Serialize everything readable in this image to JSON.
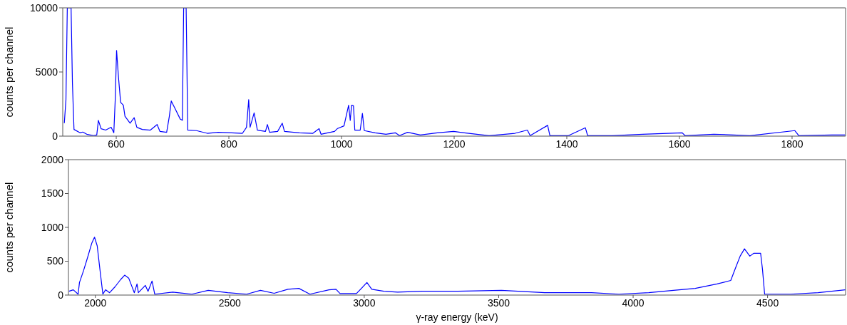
{
  "chart_data": [
    {
      "type": "line",
      "ylabel": "counts per channel",
      "xlim": [
        505,
        1895
      ],
      "xticks": [
        600,
        800,
        1000,
        1200,
        1400,
        1600,
        1800
      ],
      "ylim": [
        0,
        10000
      ],
      "yticks": [
        0,
        5000,
        10000
      ],
      "grid": false,
      "marker": "none",
      "series": [
        {
          "color": "#0000ff",
          "x": [
            507.8,
            510.7,
            513.1,
            519.8,
            522.2,
            525,
            535.7,
            540.5,
            547.6,
            559.7,
            565.4,
            568.3,
            573.1,
            581.3,
            590.9,
            595.7,
            598.2,
            600.6,
            604,
            607.8,
            612.6,
            615.5,
            624.6,
            631.8,
            636.6,
            646.2,
            660.6,
            672.6,
            677.5,
            689.5,
            694.3,
            697.7,
            703.9,
            713.5,
            717.4,
            719.7,
            724.1,
            727,
            742.4,
            761.6,
            780.9,
            804.9,
            824.1,
            831.3,
            835.2,
            837.6,
            844.8,
            850.6,
            865,
            868.4,
            872.2,
            886.6,
            894.8,
            898.7,
            925.1,
            949.2,
            960.2,
            963.6,
            987.6,
            992.4,
            1004.4,
            1012.6,
            1015.5,
            1017.9,
            1021.2,
            1023.6,
            1033.2,
            1037.1,
            1040.4,
            1059.7,
            1078.9,
            1095.7,
            1102.9,
            1117.4,
            1140,
            1170,
            1199,
            1218,
            1262,
            1308,
            1330,
            1335,
            1366,
            1370,
            1403,
            1433,
            1437,
            1481,
            1535,
            1605,
            1610,
            1661,
            1725,
            1805,
            1812,
            1871,
            1894
          ],
          "values": [
            1010,
            2840,
            10000,
            10000,
            4140,
            520,
            260,
            320,
            150,
            40,
            90,
            1230,
            580,
            470,
            690,
            260,
            2840,
            6680,
            4570,
            2630,
            2410,
            1550,
            1010,
            1440,
            690,
            520,
            470,
            905,
            370,
            300,
            1550,
            2740,
            2200,
            1340,
            1230,
            10000,
            10000,
            470,
            430,
            220,
            300,
            260,
            220,
            690,
            2840,
            690,
            1810,
            470,
            370,
            905,
            300,
            370,
            1010,
            370,
            260,
            220,
            580,
            150,
            370,
            580,
            800,
            2410,
            1230,
            2410,
            2370,
            470,
            470,
            1770,
            430,
            260,
            150,
            260,
            40,
            300,
            90,
            260,
            370,
            260,
            40,
            220,
            470,
            40,
            840,
            40,
            40,
            650,
            40,
            40,
            150,
            260,
            40,
            150,
            40,
            430,
            40,
            90,
            90
          ]
        }
      ]
    },
    {
      "type": "line",
      "xlabel": "γ-ray energy (keV)",
      "ylabel": "counts per channel",
      "xlim": [
        1900,
        4790
      ],
      "xticks": [
        2000,
        2500,
        3000,
        3500,
        4000,
        4500
      ],
      "ylim": [
        0,
        2000
      ],
      "yticks": [
        0,
        500,
        1000,
        1500,
        2000
      ],
      "grid": false,
      "marker": "none",
      "series": [
        {
          "color": "#0000ff",
          "x": [
            1902,
            1918,
            1936,
            1941,
            1956,
            1971,
            1987,
            1997,
            2007,
            2017,
            2028,
            2038,
            2053,
            2073,
            2094,
            2109,
            2124,
            2145,
            2155,
            2160,
            2186,
            2196,
            2211,
            2221,
            2288,
            2359,
            2420,
            2492,
            2563,
            2614,
            2665,
            2716,
            2757,
            2798,
            2869,
            2895,
            2910,
            2971,
            3010,
            3028,
            3073,
            3124,
            3216,
            3348,
            3510,
            3673,
            3845,
            3947,
            4058,
            4150,
            4231,
            4312,
            4363,
            4383,
            4398,
            4414,
            4434,
            4449,
            4474,
            4481,
            4489,
            4586,
            4688,
            4789
          ],
          "values": [
            56,
            78,
            13,
            186,
            359,
            553,
            769,
            855,
            726,
            380,
            13,
            78,
            35,
            121,
            229,
            294,
            251,
            35,
            164,
            35,
            143,
            56,
            207,
            13,
            43,
            13,
            69,
            35,
            13,
            69,
            26,
            86,
            99,
            13,
            78,
            86,
            22,
            22,
            186,
            86,
            56,
            43,
            56,
            56,
            69,
            35,
            35,
            13,
            35,
            69,
            99,
            164,
            216,
            423,
            575,
            683,
            575,
            618,
            618,
            380,
            13,
            13,
            35,
            78
          ]
        }
      ]
    }
  ]
}
